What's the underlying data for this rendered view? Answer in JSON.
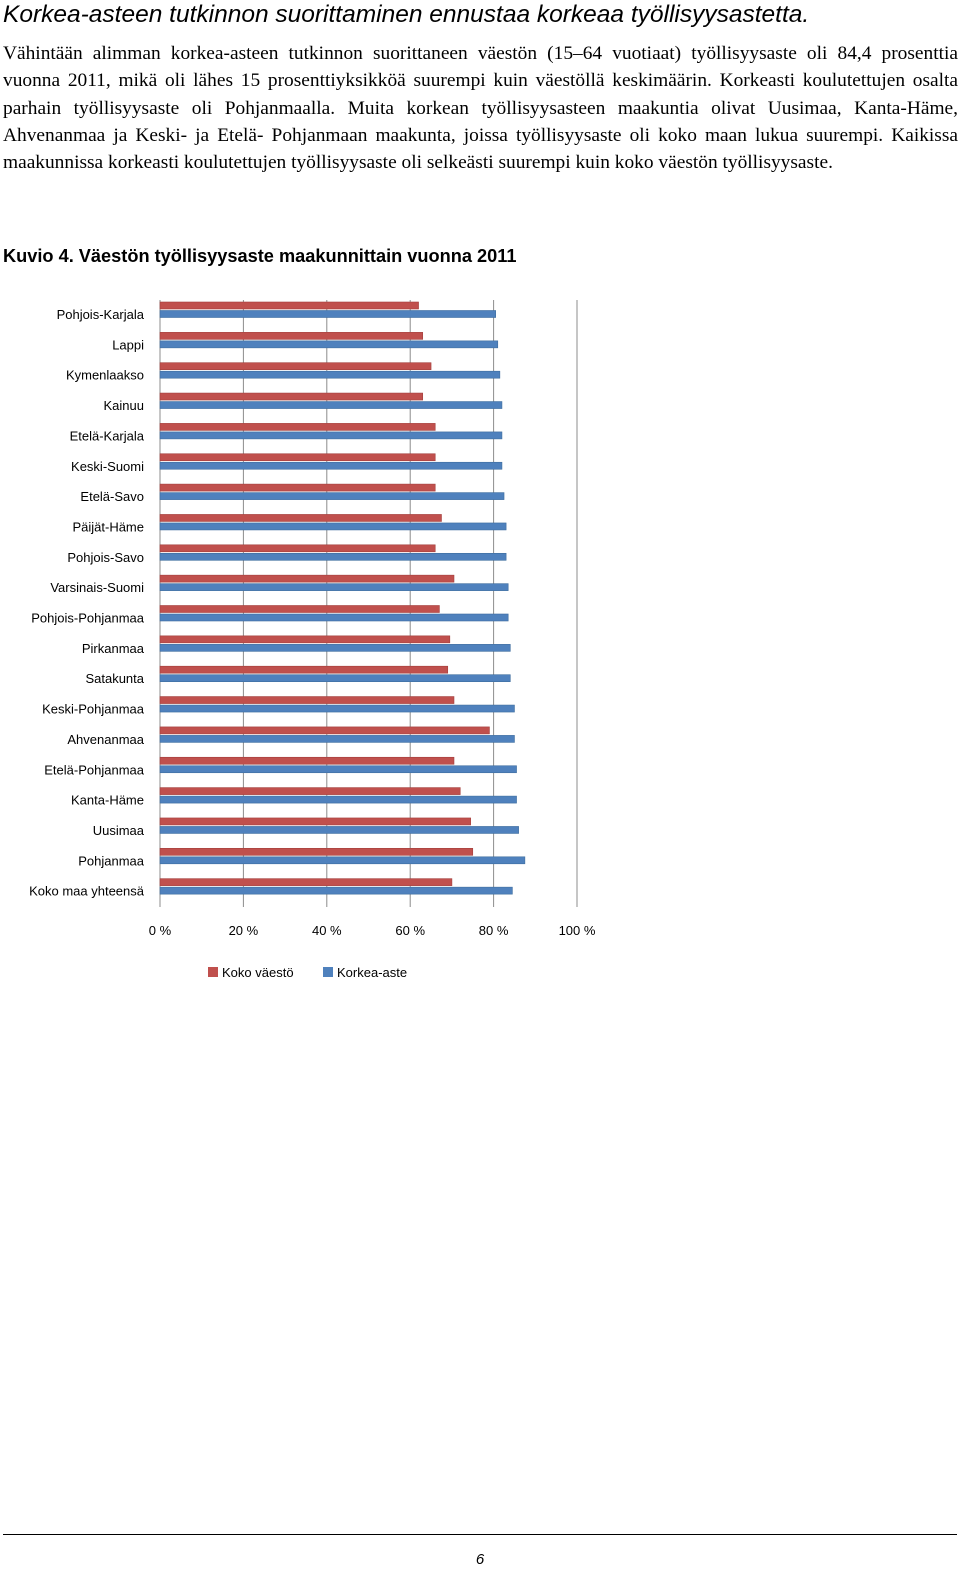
{
  "document": {
    "heading": "Korkea-asteen tutkinnon suorittaminen ennustaa korkeaa työllisyysastetta.",
    "paragraph": "Vähintään alimman korkea-asteen tutkinnon suorittaneen väestön (15–64 vuotiaat) työllisyysaste oli 84,4 prosenttia vuonna 2011, mikä oli lähes 15 prosenttiyksikköä suurempi kuin väestöllä keskimäärin. Korkeasti koulutettujen osalta parhain työllisyysaste oli Pohjanmaalla. Muita korkean työllisyysasteen maakuntia olivat Uusimaa, Kanta-Häme, Ahvenanmaa ja Keski- ja Etelä- Pohjanmaan maakunta, joissa työllisyysaste oli koko maan lukua suurempi. Kaikissa maakunnissa korkeasti koulutettujen työllisyysaste oli selkeästi suurempi kuin koko väestön työllisyysaste.",
    "caption": "Kuvio 4. Väestön työllisyysaste maakunnittain vuonna 2011",
    "page_number": "6"
  },
  "chart_data": {
    "type": "bar",
    "orientation": "horizontal",
    "title": "",
    "xlabel": "",
    "ylabel": "",
    "xlim": [
      0,
      100
    ],
    "x_ticks": [
      "0 %",
      "20 %",
      "40 %",
      "60 %",
      "80 %",
      "100 %"
    ],
    "grid": true,
    "legend_position": "bottom",
    "categories": [
      "Pohjois-Karjala",
      "Lappi",
      "Kymenlaakso",
      "Kainuu",
      "Etelä-Karjala",
      "Keski-Suomi",
      "Etelä-Savo",
      "Päijät-Häme",
      "Pohjois-Savo",
      "Varsinais-Suomi",
      "Pohjois-Pohjanmaa",
      "Pirkanmaa",
      "Satakunta",
      "Keski-Pohjanmaa",
      "Ahvenanmaa",
      "Etelä-Pohjanmaa",
      "Kanta-Häme",
      "Uusimaa",
      "Pohjanmaa",
      "Koko maa yhteensä"
    ],
    "series": [
      {
        "name": "Koko väestö",
        "color": "#c0504d",
        "values": [
          62,
          63,
          65,
          63,
          66,
          66,
          66,
          67.5,
          66,
          70.5,
          67,
          69.5,
          69,
          70.5,
          79,
          70.5,
          72,
          74.5,
          75,
          70
        ]
      },
      {
        "name": "Korkea-aste",
        "color": "#4f81bd",
        "values": [
          80.5,
          81,
          81.5,
          82,
          82,
          82,
          82.5,
          83,
          83,
          83.5,
          83.5,
          84,
          84,
          85,
          85,
          85.5,
          85.5,
          86,
          87.5,
          84.5
        ]
      }
    ]
  }
}
